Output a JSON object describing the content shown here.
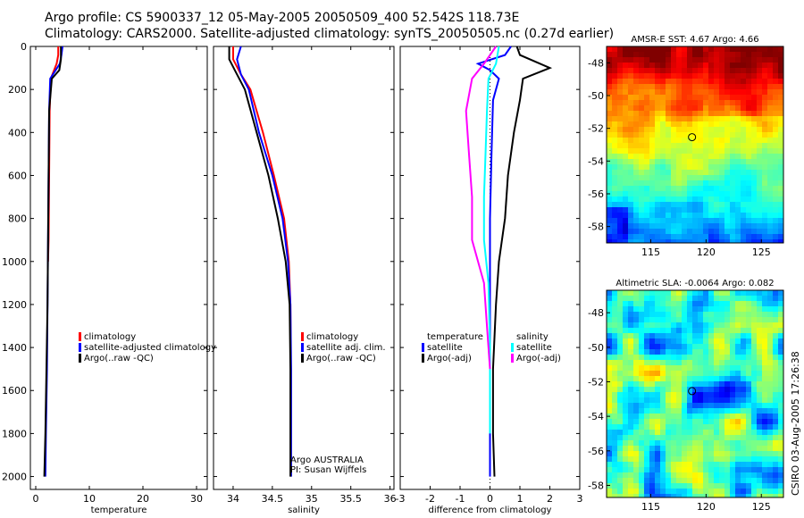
{
  "header": {
    "line1": "Argo profile: CS 5900337_12 05-May-2005 20050509_400 52.542S 118.73E",
    "line2": "Climatology: CARS2000. Satellite-adjusted climatology: synTS_20050505.nc (0.27d earlier)"
  },
  "credit": "CSIRO 03-Aug-2005 17:26:38",
  "colors": {
    "red": "#ff0000",
    "blue": "#0000ff",
    "black": "#000000",
    "cyan": "#00ffff",
    "magenta": "#ff00ff"
  },
  "chart_data": [
    {
      "type": "line",
      "id": "temperature",
      "xlabel": "temperature",
      "ylabel": "",
      "xlim": [
        -1,
        32
      ],
      "ylim": [
        2060,
        0
      ],
      "xticks": [
        0,
        10,
        20,
        30
      ],
      "yticks": [
        0,
        200,
        400,
        600,
        800,
        1000,
        1200,
        1400,
        1600,
        1800,
        2000
      ],
      "y_reversed": true,
      "series": [
        {
          "name": "climatology",
          "color": "#ff0000",
          "points": [
            [
              4.2,
              0
            ],
            [
              4.2,
              40
            ],
            [
              3.9,
              80
            ],
            [
              2.8,
              150
            ],
            [
              2.6,
              300
            ],
            [
              2.5,
              600
            ],
            [
              2.4,
              900
            ],
            [
              2.3,
              1000
            ]
          ]
        },
        {
          "name": "satellite-adjusted climatology",
          "color": "#0000ff",
          "points": [
            [
              5.0,
              0
            ],
            [
              4.8,
              40
            ],
            [
              4.5,
              80
            ],
            [
              2.7,
              150
            ],
            [
              2.5,
              300
            ],
            [
              2.4,
              600
            ],
            [
              2.3,
              900
            ],
            [
              2.2,
              1200
            ],
            [
              2.1,
              1500
            ],
            [
              1.9,
              1800
            ],
            [
              1.8,
              2000
            ]
          ]
        },
        {
          "name": "Argo(..raw -QC)",
          "color": "#000000",
          "points": [
            [
              4.7,
              0
            ],
            [
              4.7,
              60
            ],
            [
              4.4,
              110
            ],
            [
              3.0,
              150
            ],
            [
              2.5,
              300
            ],
            [
              2.4,
              600
            ],
            [
              2.3,
              900
            ],
            [
              2.2,
              1200
            ],
            [
              2.0,
              1500
            ],
            [
              1.8,
              1800
            ],
            [
              1.6,
              2000
            ]
          ]
        }
      ],
      "legend": [
        "climatology",
        "satellite-adjusted climatology",
        "Argo(..raw -QC)"
      ]
    },
    {
      "type": "line",
      "id": "salinity",
      "xlabel": "salinity",
      "ylabel": "",
      "xlim": [
        33.75,
        36.05
      ],
      "ylim": [
        2060,
        0
      ],
      "xticks": [
        34,
        34.5,
        35,
        35.5,
        36
      ],
      "xticklabels": [
        "34",
        "34.5",
        "35",
        "35.5",
        "36"
      ],
      "y_reversed": true,
      "series": [
        {
          "name": "climatology",
          "color": "#ff0000",
          "points": [
            [
              34.0,
              0
            ],
            [
              34.0,
              60
            ],
            [
              34.1,
              130
            ],
            [
              34.22,
              200
            ],
            [
              34.38,
              400
            ],
            [
              34.52,
              600
            ],
            [
              34.65,
              800
            ],
            [
              34.71,
              1000
            ],
            [
              34.73,
              1200
            ],
            [
              34.735,
              1500
            ]
          ]
        },
        {
          "name": "satellite adj. clim.",
          "color": "#0000ff",
          "points": [
            [
              34.1,
              0
            ],
            [
              34.05,
              60
            ],
            [
              34.1,
              130
            ],
            [
              34.2,
              200
            ],
            [
              34.33,
              400
            ],
            [
              34.5,
              600
            ],
            [
              34.63,
              800
            ],
            [
              34.7,
              1000
            ],
            [
              34.73,
              1200
            ],
            [
              34.74,
              1500
            ],
            [
              34.74,
              1800
            ],
            [
              34.74,
              2000
            ]
          ]
        },
        {
          "name": "Argo(..raw -QC)",
          "color": "#000000",
          "points": [
            [
              33.95,
              0
            ],
            [
              33.95,
              60
            ],
            [
              34.05,
              130
            ],
            [
              34.15,
              200
            ],
            [
              34.3,
              400
            ],
            [
              34.45,
              600
            ],
            [
              34.57,
              800
            ],
            [
              34.67,
              1000
            ],
            [
              34.72,
              1200
            ],
            [
              34.73,
              1500
            ],
            [
              34.73,
              1800
            ],
            [
              34.73,
              2000
            ]
          ]
        }
      ],
      "legend": [
        "climatology",
        "satellite adj. clim.",
        "Argo(..raw -QC)"
      ],
      "annotation": [
        "Argo AUSTRALIA",
        "PI: Susan Wijffels"
      ]
    },
    {
      "type": "line",
      "id": "difference",
      "xlabel": "difference from climatology",
      "ylabel": "",
      "xlim": [
        -3,
        3
      ],
      "ylim": [
        2060,
        0
      ],
      "xticks": [
        -3,
        -2,
        -1,
        0,
        1,
        2,
        3
      ],
      "y_reversed": true,
      "series": [
        {
          "name": "temperature satellite",
          "color": "#0000ff",
          "points": [
            [
              0.7,
              0
            ],
            [
              0.5,
              40
            ],
            [
              -0.4,
              80
            ],
            [
              0.0,
              110
            ],
            [
              0.3,
              150
            ],
            [
              0.1,
              250
            ],
            [
              0.05,
              500
            ],
            [
              0.0,
              800
            ],
            [
              0.0,
              1200
            ],
            [
              0.0,
              1600
            ],
            [
              0.0,
              2000
            ]
          ]
        },
        {
          "name": "temperature Argo(-adj)",
          "color": "#000000",
          "points": [
            [
              0.9,
              0
            ],
            [
              1.0,
              40
            ],
            [
              2.0,
              100
            ],
            [
              1.1,
              150
            ],
            [
              1.0,
              250
            ],
            [
              0.8,
              400
            ],
            [
              0.6,
              600
            ],
            [
              0.5,
              800
            ],
            [
              0.3,
              1000
            ],
            [
              0.2,
              1200
            ],
            [
              0.1,
              1500
            ],
            [
              0.1,
              1800
            ],
            [
              0.15,
              2000
            ]
          ]
        },
        {
          "name": "salinity satellite",
          "color": "#00ffff",
          "points": [
            [
              0.3,
              0
            ],
            [
              0.2,
              80
            ],
            [
              -0.05,
              150
            ],
            [
              -0.1,
              300
            ],
            [
              -0.15,
              500
            ],
            [
              -0.2,
              700
            ],
            [
              -0.2,
              900
            ],
            [
              -0.05,
              1100
            ],
            [
              0.0,
              1400
            ],
            [
              0.0,
              1800
            ]
          ]
        },
        {
          "name": "salinity Argo(-adj)",
          "color": "#ff00ff",
          "points": [
            [
              0.2,
              0
            ],
            [
              -0.2,
              80
            ],
            [
              -0.6,
              150
            ],
            [
              -0.8,
              300
            ],
            [
              -0.7,
              500
            ],
            [
              -0.6,
              700
            ],
            [
              -0.6,
              900
            ],
            [
              -0.2,
              1100
            ],
            [
              -0.1,
              1300
            ],
            [
              0.0,
              1500
            ]
          ]
        }
      ],
      "legend_left": [
        "temperature",
        "satellite",
        "Argo(-adj)"
      ],
      "legend_right": [
        "salinity",
        "satellite",
        "Argo(-adj)"
      ]
    },
    {
      "type": "heatmap",
      "id": "sst-map",
      "title": "AMSR-E SST: 4.67 Argo: 4.66",
      "xlim": [
        111,
        127
      ],
      "ylim": [
        -59,
        -47
      ],
      "xticks": [
        115,
        120,
        125
      ],
      "yticks": [
        -48,
        -50,
        -52,
        -54,
        -56,
        -58
      ],
      "marker": {
        "lon": 118.73,
        "lat": -52.54
      }
    },
    {
      "type": "heatmap",
      "id": "sla-map",
      "title": "Altimetric SLA: -0.0064 Argo: 0.082",
      "xlim": [
        111,
        127
      ],
      "ylim": [
        -58.7,
        -46.7
      ],
      "xticks": [
        115,
        120,
        125
      ],
      "yticks": [
        -48,
        -50,
        -52,
        -54,
        -56,
        -58
      ],
      "marker": {
        "lon": 118.73,
        "lat": -52.54
      }
    }
  ]
}
